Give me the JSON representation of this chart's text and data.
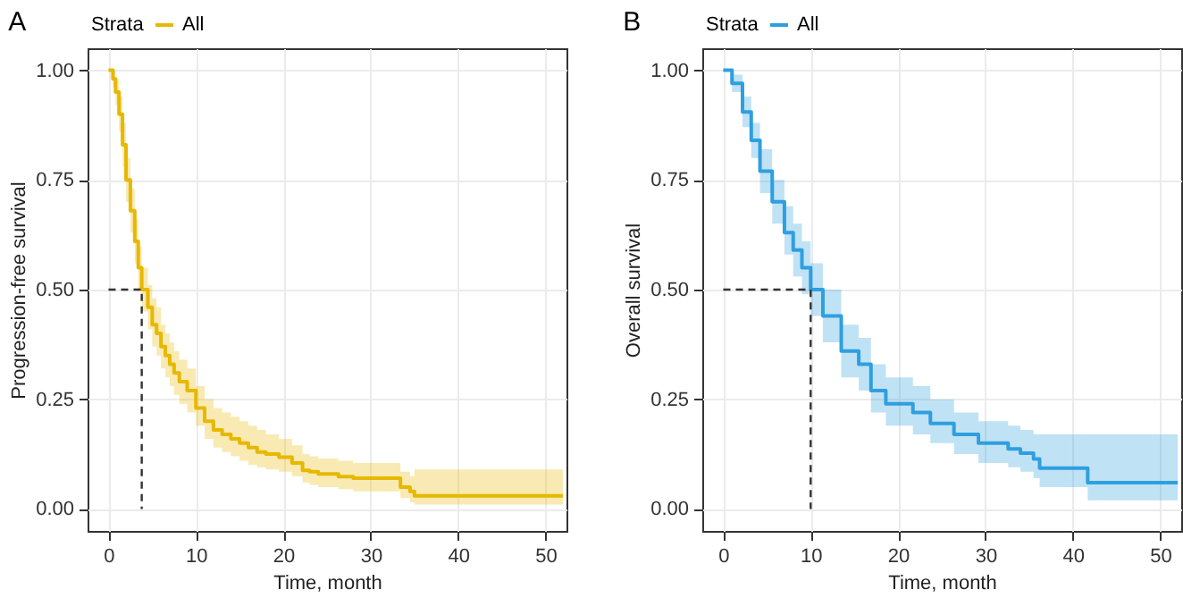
{
  "chart_data": [
    {
      "type": "step",
      "title": "A",
      "xlabel": "Time, month",
      "ylabel": "Progression-free survival",
      "legend_title": "Strata",
      "legend": "top",
      "grid": true,
      "xlim": [
        -2.4,
        52.4
      ],
      "xticks": [
        0,
        10,
        20,
        30,
        40,
        50
      ],
      "ylim": [
        -0.05,
        1.05
      ],
      "yticks": [
        {
          "value": 0,
          "label": "0.00"
        },
        {
          "value": 0.25,
          "label": "0.25"
        },
        {
          "value": 0.5,
          "label": "0.50"
        },
        {
          "value": 0.75,
          "label": "0.75"
        },
        {
          "value": 1,
          "label": "1.00"
        }
      ],
      "series": [
        {
          "name": "All",
          "color": "#e7b800",
          "x": [
            0,
            0.5,
            0.8,
            1.2,
            1.6,
            2.0,
            2.5,
            3.0,
            3.4,
            3.8,
            4.5,
            5,
            5.5,
            6,
            6.5,
            7,
            7.5,
            8.1,
            9,
            10,
            11,
            12,
            13,
            14,
            15,
            16,
            17,
            18,
            19.5,
            21,
            22.2,
            23,
            24,
            26.3,
            28,
            30,
            32,
            33.4,
            34.5,
            35,
            52
          ],
          "values": [
            1.0,
            0.98,
            0.95,
            0.9,
            0.83,
            0.75,
            0.68,
            0.61,
            0.55,
            0.5,
            0.46,
            0.42,
            0.4,
            0.37,
            0.35,
            0.33,
            0.31,
            0.29,
            0.27,
            0.23,
            0.2,
            0.18,
            0.17,
            0.16,
            0.15,
            0.14,
            0.13,
            0.125,
            0.118,
            0.105,
            0.088,
            0.085,
            0.08,
            0.074,
            0.07,
            0.07,
            0.07,
            0.05,
            0.04,
            0.03,
            0.03
          ],
          "lower": [
            1.0,
            0.96,
            0.92,
            0.86,
            0.78,
            0.7,
            0.63,
            0.56,
            0.5,
            0.45,
            0.41,
            0.37,
            0.35,
            0.32,
            0.3,
            0.28,
            0.26,
            0.24,
            0.22,
            0.19,
            0.16,
            0.14,
            0.13,
            0.12,
            0.11,
            0.1,
            0.095,
            0.09,
            0.085,
            0.075,
            0.06,
            0.055,
            0.05,
            0.045,
            0.04,
            0.04,
            0.04,
            0.025,
            0.015,
            0.01,
            0.01
          ],
          "upper": [
            1.0,
            1.0,
            0.98,
            0.94,
            0.88,
            0.8,
            0.73,
            0.66,
            0.6,
            0.55,
            0.51,
            0.48,
            0.46,
            0.42,
            0.4,
            0.38,
            0.36,
            0.34,
            0.32,
            0.28,
            0.25,
            0.23,
            0.22,
            0.21,
            0.2,
            0.19,
            0.18,
            0.17,
            0.16,
            0.145,
            0.125,
            0.12,
            0.115,
            0.11,
            0.105,
            0.105,
            0.105,
            0.085,
            0.075,
            0.09,
            0.09
          ]
        },
        {
          "type": "line",
          "color": "#333333",
          "line_style": "dashed",
          "x": [
            0,
            3.8,
            3.8
          ],
          "values": [
            0.5,
            0.5,
            0
          ]
        }
      ]
    },
    {
      "type": "step",
      "title": "B",
      "xlabel": "Time, month",
      "ylabel": "Overall survival",
      "legend_title": "Strata",
      "legend": "top",
      "grid": true,
      "xlim": [
        -2.4,
        52.4
      ],
      "xticks": [
        0,
        10,
        20,
        30,
        40,
        50
      ],
      "ylim": [
        -0.05,
        1.05
      ],
      "yticks": [
        {
          "value": 0,
          "label": "0.00"
        },
        {
          "value": 0.25,
          "label": "0.25"
        },
        {
          "value": 0.5,
          "label": "0.50"
        },
        {
          "value": 0.75,
          "label": "0.75"
        },
        {
          "value": 1,
          "label": "1.00"
        }
      ],
      "series": [
        {
          "name": "All",
          "color": "#2e9fdf",
          "x": [
            0,
            1,
            2.2,
            3.2,
            4.2,
            5.6,
            7,
            8,
            9,
            10,
            11.4,
            13.5,
            15.5,
            16.9,
            18.6,
            21.7,
            23.7,
            26.4,
            29.2,
            32.6,
            34,
            35.5,
            36.2,
            41.7,
            52
          ],
          "values": [
            1,
            0.97,
            0.905,
            0.84,
            0.77,
            0.7,
            0.63,
            0.59,
            0.55,
            0.5,
            0.44,
            0.36,
            0.33,
            0.27,
            0.24,
            0.22,
            0.195,
            0.17,
            0.15,
            0.137,
            0.127,
            0.114,
            0.093,
            0.06,
            0.06
          ],
          "lower": [
            1,
            0.95,
            0.87,
            0.8,
            0.72,
            0.65,
            0.58,
            0.53,
            0.49,
            0.44,
            0.38,
            0.3,
            0.27,
            0.22,
            0.19,
            0.17,
            0.15,
            0.125,
            0.105,
            0.095,
            0.085,
            0.07,
            0.05,
            0.02,
            0.02
          ],
          "upper": [
            1,
            0.99,
            0.94,
            0.88,
            0.82,
            0.75,
            0.69,
            0.65,
            0.61,
            0.56,
            0.5,
            0.42,
            0.39,
            0.33,
            0.3,
            0.28,
            0.25,
            0.22,
            0.2,
            0.19,
            0.18,
            0.17,
            0.17,
            0.17,
            0.17
          ]
        },
        {
          "type": "line",
          "color": "#333333",
          "line_style": "dashed",
          "x": [
            0,
            10,
            10
          ],
          "values": [
            0.5,
            0.5,
            0
          ]
        }
      ]
    }
  ]
}
